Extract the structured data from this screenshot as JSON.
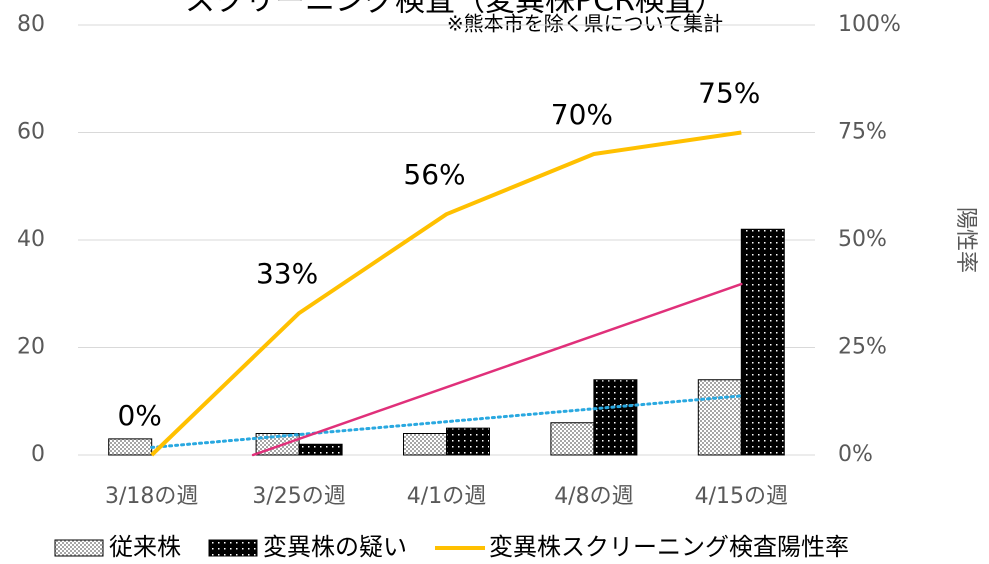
{
  "chart_data": {
    "type": "bar",
    "title": "スクリーニング検査（変異株PCR検査）",
    "subtitle": "※熊本市を除く県について集計",
    "y2_label": "陽性率",
    "categories": [
      "3/18の週",
      "3/25の週",
      "4/1の週",
      "4/8の週",
      "4/15の週"
    ],
    "series": [
      {
        "name": "従来株",
        "type": "bar",
        "color": "#a6a6a6",
        "values": [
          3,
          4,
          4,
          6,
          14
        ],
        "trendline": true,
        "trend_color": "#29a8e0",
        "trend_dash": true
      },
      {
        "name": "変異株の疑い",
        "type": "bar",
        "color": "#000000",
        "values": [
          0,
          2,
          5,
          14,
          42
        ],
        "trendline": true,
        "trend_color": "#e0307a",
        "trend_dash": false
      },
      {
        "name": "変異株スクリーニング検査陽性率",
        "type": "line",
        "axis": "y2",
        "color": "#ffc000",
        "values": [
          0,
          33,
          56,
          70,
          75
        ],
        "value_labels": [
          "0%",
          "33%",
          "56%",
          "70%",
          "75%"
        ]
      }
    ],
    "ylim": [
      0,
      80
    ],
    "yticks": [
      0,
      20,
      40,
      60,
      80
    ],
    "y2lim": [
      0,
      100
    ],
    "y2ticks": [
      {
        "value": 0,
        "label": "0%"
      },
      {
        "value": 25,
        "label": "25%"
      },
      {
        "value": 50,
        "label": "50%"
      },
      {
        "value": 75,
        "label": "75%"
      },
      {
        "value": 100,
        "label": "100%"
      }
    ],
    "grid": true,
    "legend": "bottom"
  }
}
